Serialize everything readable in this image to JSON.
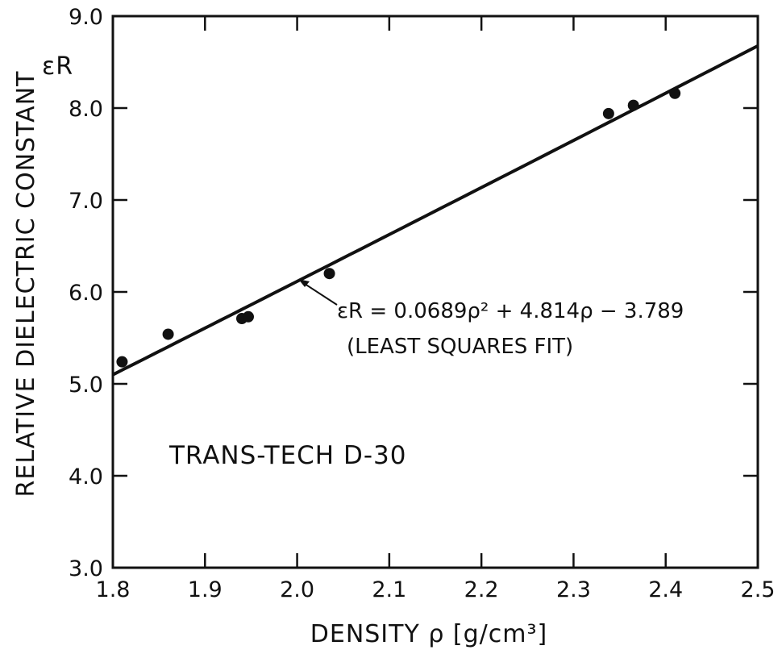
{
  "chart_data": {
    "type": "scatter",
    "title": "",
    "xlabel": "DENSITY ρ [g/cm³]",
    "ylabel": "RELATIVE DIELECTRIC CONSTANT",
    "ylabel_symbol": "εR",
    "xlim": [
      1.8,
      2.5
    ],
    "ylim": [
      3.0,
      9.0
    ],
    "x_ticks": [
      "1.8",
      "1.9",
      "2.0",
      "2.1",
      "2.2",
      "2.3",
      "2.4",
      "2.5"
    ],
    "y_ticks": [
      "3.0",
      "4.0",
      "5.0",
      "6.0",
      "7.0",
      "8.0",
      "9.0"
    ],
    "grid": false,
    "series": [
      {
        "x": [
          1.81,
          1.86,
          1.94,
          1.947,
          2.035,
          2.338,
          2.365,
          2.41
        ],
        "y": [
          5.24,
          5.54,
          5.71,
          5.73,
          6.2,
          7.94,
          8.03,
          8.16
        ]
      }
    ],
    "fit": {
      "coefficients": [
        0.0689,
        4.814,
        -3.789
      ],
      "equation": "εR = 0.0689ρ² + 4.814ρ − 3.789",
      "note": "(LEAST SQUARES FIT)"
    },
    "annotations": [
      "TRANS-TECH D-30"
    ]
  }
}
